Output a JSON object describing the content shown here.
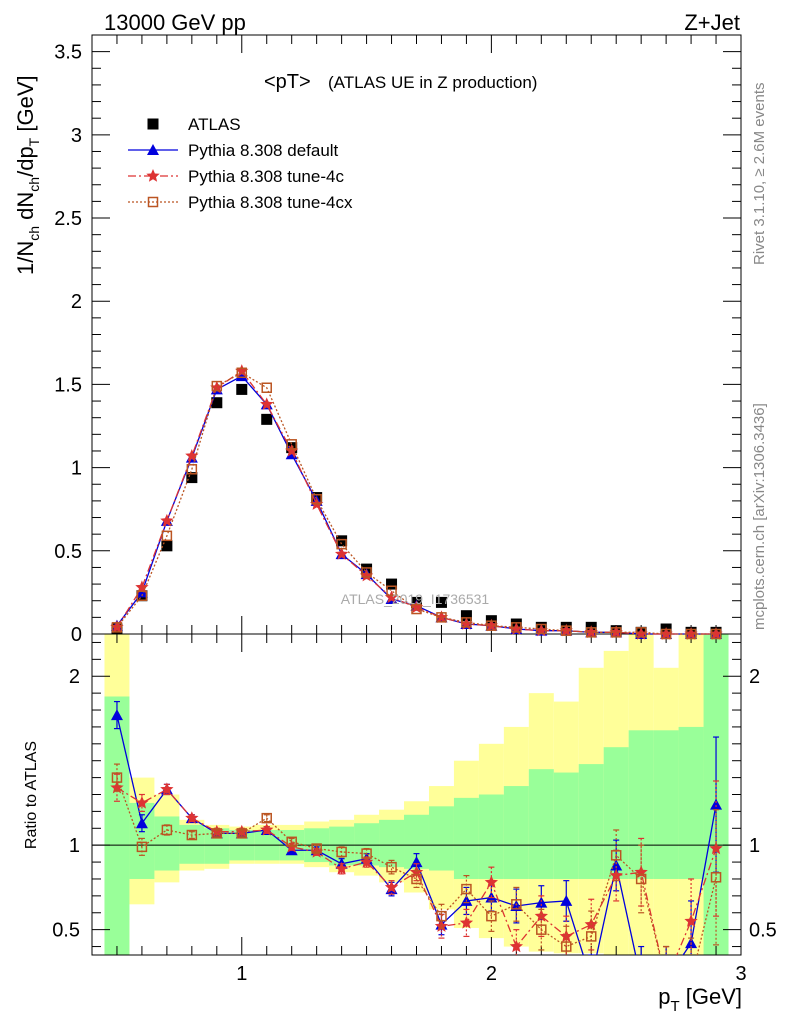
{
  "header": {
    "left_label": "13000 GeV pp",
    "right_label": "Z+Jet"
  },
  "side_labels": {
    "top": "Rivet 3.1.10, ≥ 2.6M events",
    "bottom": "mcplots.cern.ch [arXiv:1306.3436]"
  },
  "watermark": "ATLAS_2019_I1736531",
  "chart_data": [
    {
      "type": "line",
      "panel": "main",
      "title": "<pT> (ATLAS UE in Z production)",
      "title_main": "<pT>",
      "title_sub": "(ATLAS UE in Z production)",
      "ylabel": "1/N_ch dN_ch/dp_T [GeV]",
      "xlim": [
        0.4,
        3.0
      ],
      "ylim": [
        0,
        3.6
      ],
      "xticks": [
        1,
        2,
        3
      ],
      "yticks": [
        0,
        0.5,
        1,
        1.5,
        2,
        2.5,
        3,
        3.5
      ],
      "ytick_labels": [
        "0",
        "0.5",
        "1",
        "1.5",
        "2",
        "2.5",
        "3",
        "3.5"
      ],
      "legend_position": "top-left",
      "x": [
        0.5,
        0.6,
        0.7,
        0.8,
        0.9,
        1.0,
        1.1,
        1.2,
        1.3,
        1.4,
        1.5,
        1.6,
        1.7,
        1.8,
        1.9,
        2.0,
        2.1,
        2.2,
        2.3,
        2.4,
        2.5,
        2.6,
        2.7,
        2.8,
        2.9
      ],
      "series": [
        {
          "name": "ATLAS",
          "color": "#000000",
          "marker": "square-filled",
          "values": [
            0.03,
            0.23,
            0.53,
            0.94,
            1.39,
            1.47,
            1.29,
            1.12,
            0.82,
            0.56,
            0.39,
            0.3,
            0.19,
            0.19,
            0.11,
            0.08,
            0.06,
            0.04,
            0.04,
            0.04,
            0.02,
            0.01,
            0.03,
            0.01,
            0.01
          ]
        },
        {
          "name": "Pythia 8.308 default",
          "color": "#0000dd",
          "marker": "triangle-filled",
          "dash": "",
          "values": [
            0.05,
            0.25,
            0.68,
            1.06,
            1.47,
            1.55,
            1.38,
            1.08,
            0.8,
            0.48,
            0.36,
            0.21,
            0.17,
            0.1,
            0.06,
            0.05,
            0.03,
            0.02,
            0.02,
            0.01,
            0.01,
            0.0,
            0.0,
            0.0,
            0.0
          ]
        },
        {
          "name": "Pythia 8.308 tune-4c",
          "color": "#dd3333",
          "marker": "star",
          "dash": "8,3,2,3",
          "values": [
            0.04,
            0.28,
            0.68,
            1.07,
            1.48,
            1.58,
            1.38,
            1.1,
            0.78,
            0.48,
            0.35,
            0.22,
            0.16,
            0.1,
            0.06,
            0.05,
            0.03,
            0.02,
            0.02,
            0.01,
            0.01,
            0.0,
            0.0,
            0.0,
            0.0
          ]
        },
        {
          "name": "Pythia 8.308 tune-4cx",
          "color": "#bb5522",
          "marker": "square-open",
          "dash": "2,2",
          "values": [
            0.04,
            0.23,
            0.59,
            0.99,
            1.49,
            1.57,
            1.48,
            1.14,
            0.81,
            0.54,
            0.37,
            0.26,
            0.15,
            0.1,
            0.07,
            0.05,
            0.04,
            0.03,
            0.02,
            0.01,
            0.01,
            0.01,
            0.0,
            0.0,
            0.0
          ]
        }
      ]
    },
    {
      "type": "line",
      "panel": "ratio",
      "ylabel": "Ratio to ATLAS",
      "xlabel": "p_T [GeV]",
      "xlim": [
        0.4,
        3.0
      ],
      "ylim": [
        0.35,
        2.25
      ],
      "xticks": [
        1,
        2,
        3
      ],
      "xtick_labels": [
        "1",
        "2",
        "3"
      ],
      "yticks": [
        0.5,
        1,
        2
      ],
      "ytick_labels": [
        "0.5",
        "1",
        "2"
      ],
      "reference_line": 1,
      "x": [
        0.5,
        0.6,
        0.7,
        0.8,
        0.9,
        1.0,
        1.1,
        1.2,
        1.3,
        1.4,
        1.5,
        1.6,
        1.7,
        1.8,
        1.9,
        2.0,
        2.1,
        2.2,
        2.3,
        2.4,
        2.5,
        2.6,
        2.7,
        2.8,
        2.9
      ],
      "bands": {
        "stat_green": {
          "color": "#99ff99",
          "lo": [
            0.33,
            0.8,
            0.85,
            0.89,
            0.89,
            0.91,
            0.91,
            0.91,
            0.9,
            0.88,
            0.88,
            0.87,
            0.86,
            0.85,
            0.8,
            0.8,
            0.8,
            0.8,
            0.8,
            0.8,
            0.8,
            0.8,
            0.8,
            0.8,
            0.33
          ],
          "hi": [
            1.88,
            1.25,
            1.17,
            1.12,
            1.1,
            1.09,
            1.09,
            1.09,
            1.1,
            1.11,
            1.13,
            1.15,
            1.18,
            1.23,
            1.28,
            1.3,
            1.35,
            1.45,
            1.43,
            1.48,
            1.58,
            1.68,
            1.68,
            1.7,
            2.25
          ]
        },
        "syst_yellow": {
          "color": "#ffff99",
          "lo": [
            0.33,
            0.65,
            0.78,
            0.85,
            0.86,
            0.89,
            0.89,
            0.89,
            0.87,
            0.84,
            0.82,
            0.78,
            0.72,
            0.62,
            0.51,
            0.45,
            0.4,
            0.37,
            0.36,
            0.36,
            0.35,
            0.35,
            0.35,
            0.35,
            0.33
          ],
          "hi": [
            2.25,
            1.4,
            1.3,
            1.15,
            1.12,
            1.11,
            1.12,
            1.12,
            1.14,
            1.15,
            1.18,
            1.21,
            1.26,
            1.35,
            1.5,
            1.6,
            1.7,
            1.9,
            1.85,
            2.05,
            2.15,
            2.25,
            2.05,
            2.25,
            2.25
          ]
        }
      },
      "series": [
        {
          "name": "Pythia 8.308 default",
          "color": "#0000dd",
          "marker": "triangle-filled",
          "dash": "",
          "values": [
            1.77,
            1.13,
            1.33,
            1.16,
            1.07,
            1.07,
            1.09,
            0.97,
            0.97,
            0.89,
            0.92,
            0.74,
            0.9,
            0.53,
            0.67,
            0.69,
            0.64,
            0.66,
            0.67,
            0.2,
            0.88,
            0.2,
            0.2,
            0.42,
            1.24
          ],
          "err": [
            0.08,
            0.05,
            0.03,
            0.02,
            0.02,
            0.02,
            0.02,
            0.02,
            0.02,
            0.03,
            0.03,
            0.04,
            0.05,
            0.06,
            0.08,
            0.08,
            0.1,
            0.1,
            0.12,
            0.15,
            0.15,
            0.2,
            0.2,
            0.25,
            0.4
          ]
        },
        {
          "name": "Pythia 8.308 tune-4c",
          "color": "#dd3333",
          "marker": "star",
          "dash": "8,3,2,3",
          "values": [
            1.34,
            1.25,
            1.33,
            1.16,
            1.08,
            1.08,
            1.09,
            0.99,
            0.96,
            0.86,
            0.9,
            0.75,
            0.84,
            0.52,
            0.54,
            0.78,
            0.4,
            0.58,
            0.46,
            0.53,
            0.82,
            0.84,
            0.2,
            0.55,
            0.98
          ],
          "err": [
            0.08,
            0.05,
            0.03,
            0.02,
            0.02,
            0.02,
            0.02,
            0.02,
            0.02,
            0.03,
            0.03,
            0.04,
            0.05,
            0.07,
            0.08,
            0.09,
            0.1,
            0.12,
            0.12,
            0.15,
            0.15,
            0.2,
            0.2,
            0.25,
            0.4
          ]
        },
        {
          "name": "Pythia 8.308 tune-4cx",
          "color": "#bb5522",
          "marker": "square-open",
          "dash": "2,2",
          "values": [
            1.4,
            0.99,
            1.09,
            1.06,
            1.07,
            1.07,
            1.16,
            1.02,
            0.98,
            0.96,
            0.95,
            0.87,
            0.8,
            0.58,
            0.74,
            0.58,
            0.65,
            0.5,
            0.4,
            0.46,
            0.94,
            0.8,
            0.2,
            0.2,
            0.81
          ],
          "err": [
            0.08,
            0.05,
            0.03,
            0.02,
            0.02,
            0.02,
            0.02,
            0.02,
            0.02,
            0.03,
            0.03,
            0.04,
            0.05,
            0.07,
            0.08,
            0.09,
            0.1,
            0.12,
            0.12,
            0.15,
            0.15,
            0.2,
            0.2,
            0.25,
            0.4
          ]
        }
      ]
    }
  ]
}
